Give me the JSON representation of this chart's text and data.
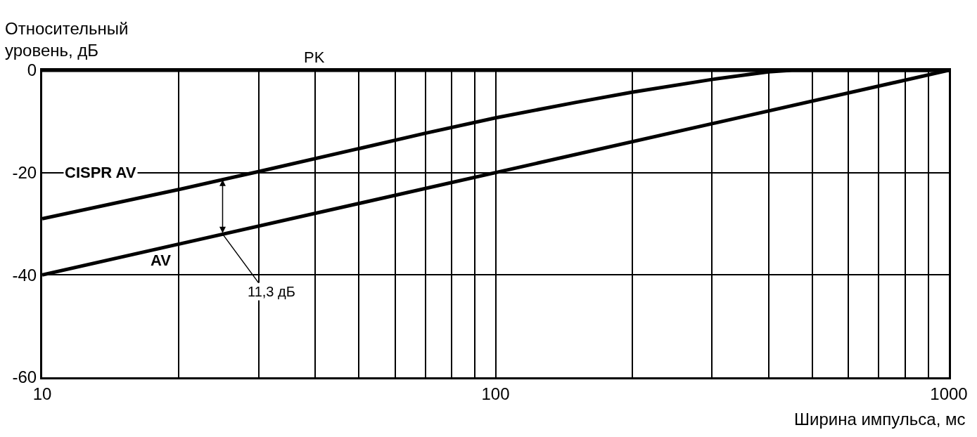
{
  "chart_data": {
    "type": "line",
    "xlabel": "Ширина импульса, мс",
    "ylabel": "Относительный\nуровень, дБ",
    "log": "x",
    "xlim": [
      10,
      1000
    ],
    "ylim": [
      -60,
      0
    ],
    "xticks": [
      10,
      {
        "value": 20,
        "label": null
      },
      {
        "value": 30,
        "label": null
      },
      {
        "value": 40,
        "label": null
      },
      {
        "value": 50,
        "label": null
      },
      {
        "value": 60,
        "label": null
      },
      {
        "value": 70,
        "label": null
      },
      {
        "value": 80,
        "label": null
      },
      {
        "value": 90,
        "label": null
      },
      100,
      {
        "value": 200,
        "label": null
      },
      {
        "value": 300,
        "label": null
      },
      {
        "value": 400,
        "label": null
      },
      {
        "value": 500,
        "label": null
      },
      {
        "value": 600,
        "label": null
      },
      {
        "value": 700,
        "label": null
      },
      {
        "value": 800,
        "label": null
      },
      {
        "value": 900,
        "label": null
      },
      1000
    ],
    "yticks": [
      -60,
      -40,
      -20,
      0
    ],
    "grid": true,
    "legend": false,
    "marker": "none",
    "line_style": "solid",
    "series": [
      {
        "name": "PK",
        "color": "#000000",
        "x": [
          10,
          1000
        ],
        "values": [
          0,
          0
        ]
      },
      {
        "name": "CISPR AV",
        "color": "#000000",
        "x": [
          10,
          20,
          30,
          50,
          70,
          100,
          150,
          200,
          300,
          400,
          450,
          1000
        ],
        "values": [
          -29,
          -23.3,
          -19.8,
          -15.3,
          -12.3,
          -9.3,
          -6.3,
          -4.3,
          -1.8,
          -0.3,
          0,
          0
        ]
      },
      {
        "name": "AV",
        "color": "#000000",
        "x": [
          10,
          1000
        ],
        "values": [
          -40,
          0
        ]
      }
    ],
    "annotations": [
      {
        "text": "11,3 дБ",
        "x": 25,
        "y": -32
      }
    ]
  }
}
